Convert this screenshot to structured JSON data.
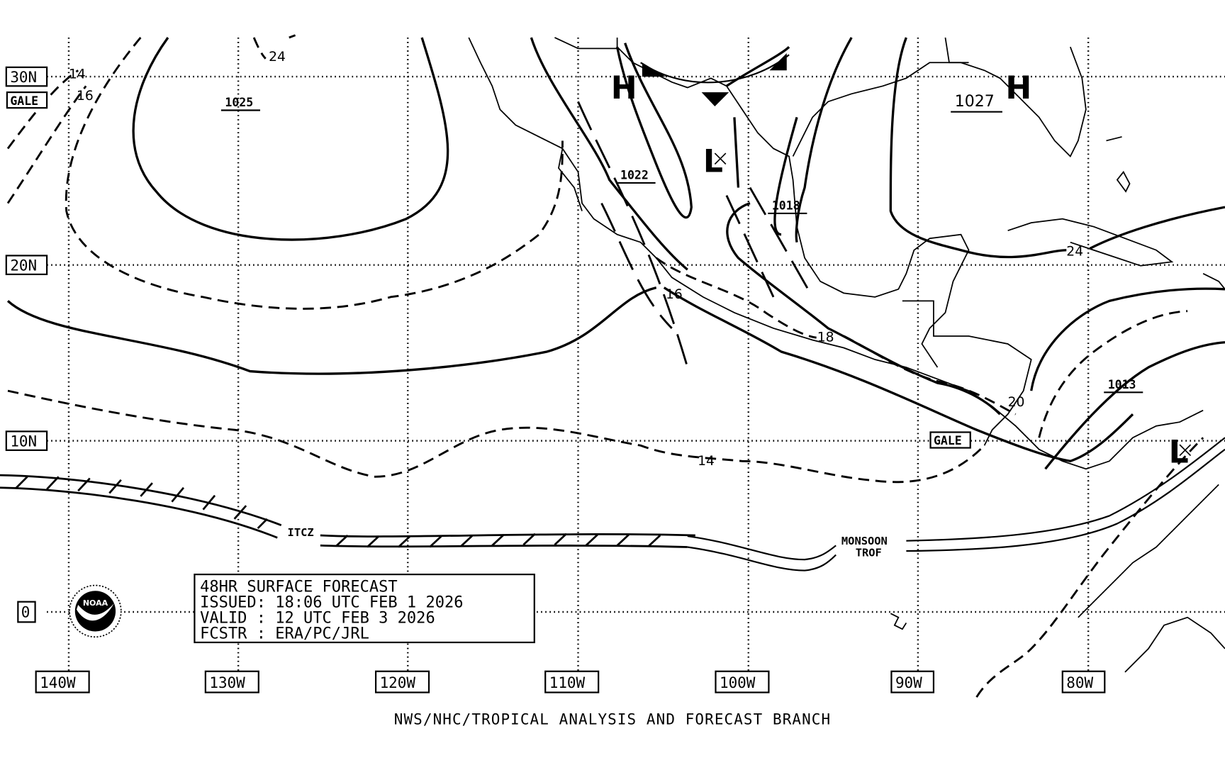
{
  "map": {
    "latitude_labels": [
      "30N",
      "20N",
      "10N",
      "0"
    ],
    "longitude_labels": [
      "140W",
      "130W",
      "120W",
      "110W",
      "100W",
      "90W",
      "80W"
    ],
    "gale_labels": [
      "GALE",
      "GALE"
    ],
    "pressure_centers": [
      {
        "type": "H",
        "value": "1025"
      },
      {
        "type": "H",
        "value": ""
      },
      {
        "type": "L",
        "value": "1018"
      },
      {
        "type": "H",
        "value": "1027"
      },
      {
        "type": "L",
        "value": "1013"
      }
    ],
    "isobar_labels": [
      "1025",
      "1022",
      "1018",
      "1027",
      "1013"
    ],
    "center_letters": [
      "H",
      "L",
      "H",
      "L"
    ],
    "sea_height_labels": [
      "14",
      "16",
      "24",
      "16",
      "18",
      "20",
      "14",
      "24"
    ],
    "features": {
      "itcz": "ITCZ",
      "monsoon_trof_1": "MONSOON",
      "monsoon_trof_2": "TROF"
    },
    "colors": {
      "ink": "#000000",
      "background": "#ffffff"
    }
  },
  "info_box": {
    "title": "48HR SURFACE FORECAST",
    "issued": "ISSUED: 18:06 UTC FEB 1 2026",
    "valid": "VALID : 12 UTC FEB 3 2026",
    "forecaster": "FCSTR : ERA/PC/JRL"
  },
  "logo": {
    "text": "NOAA"
  },
  "footer": "NWS/NHC/TROPICAL ANALYSIS AND FORECAST BRANCH"
}
